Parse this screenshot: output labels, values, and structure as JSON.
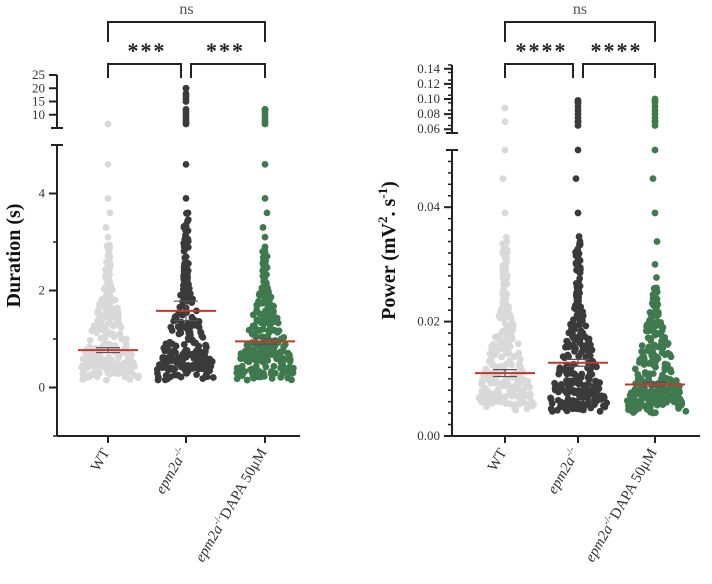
{
  "chart_data": [
    {
      "type": "scatter",
      "subtype": "swarm-with-mean-sem",
      "ylabel": "Duration (s)",
      "y_scale": "broken",
      "lower_segment": {
        "ylim": [
          -1,
          5
        ],
        "ticks": [
          "0",
          "2",
          "4"
        ]
      },
      "upper_segment": {
        "ylim": [
          5,
          25
        ],
        "ticks": [
          "10",
          "15",
          "20",
          "25"
        ]
      },
      "categories": [
        {
          "label": "WT",
          "italic_prefix": "",
          "color": "#d9d9d9",
          "mean": 0.77,
          "sem": 0.05,
          "y_max": 6.5
        },
        {
          "label": "epm2a",
          "italic_prefix": "",
          "superscript": "-/-",
          "color": "#3a3a3a",
          "mean": 1.58,
          "sem": 0.2,
          "y_max": 20
        },
        {
          "label": "DAPA 50μM",
          "italic_prefix": "epm2a",
          "superscript": "-/-",
          "color": "#3f7a4f",
          "mean": 0.95,
          "sem": 0.06,
          "y_max": 12
        }
      ],
      "mean_line_color": "#c0392b",
      "comparisons": [
        {
          "from": 0,
          "to": 1,
          "label": "***"
        },
        {
          "from": 1,
          "to": 2,
          "label": "***"
        },
        {
          "from": 0,
          "to": 2,
          "label": "ns"
        }
      ]
    },
    {
      "type": "scatter",
      "subtype": "swarm-with-mean-sem",
      "ylabel_main": "Power (mV",
      "ylabel_sup1": "2",
      "ylabel_mid": ". s",
      "ylabel_sup2": "-1",
      "ylabel_end": ")",
      "y_scale": "broken",
      "lower_segment": {
        "ylim": [
          0,
          0.05
        ],
        "ticks": [
          "0.00",
          "0.02",
          "0.04"
        ]
      },
      "upper_segment": {
        "ylim": [
          0.06,
          0.14
        ],
        "ticks": [
          "0.06",
          "0.08",
          "0.10",
          "0.12",
          "0.14"
        ]
      },
      "categories": [
        {
          "label": "WT",
          "italic_prefix": "",
          "color": "#d9d9d9",
          "mean": 0.011,
          "sem": 0.0006,
          "y_max": 0.088
        },
        {
          "label": "epm2a",
          "italic_prefix": "",
          "superscript": "-/-",
          "color": "#3a3a3a",
          "mean": 0.0128,
          "sem": 0.0006,
          "y_max": 0.098
        },
        {
          "label": "DAPA 50μM",
          "italic_prefix": "epm2a",
          "superscript": "-/-",
          "color": "#3f7a4f",
          "mean": 0.009,
          "sem": 0.0004,
          "y_max": 0.1
        }
      ],
      "mean_line_color": "#c0392b",
      "comparisons": [
        {
          "from": 0,
          "to": 1,
          "label": "****"
        },
        {
          "from": 1,
          "to": 2,
          "label": "****"
        },
        {
          "from": 0,
          "to": 2,
          "label": "ns"
        }
      ]
    }
  ]
}
